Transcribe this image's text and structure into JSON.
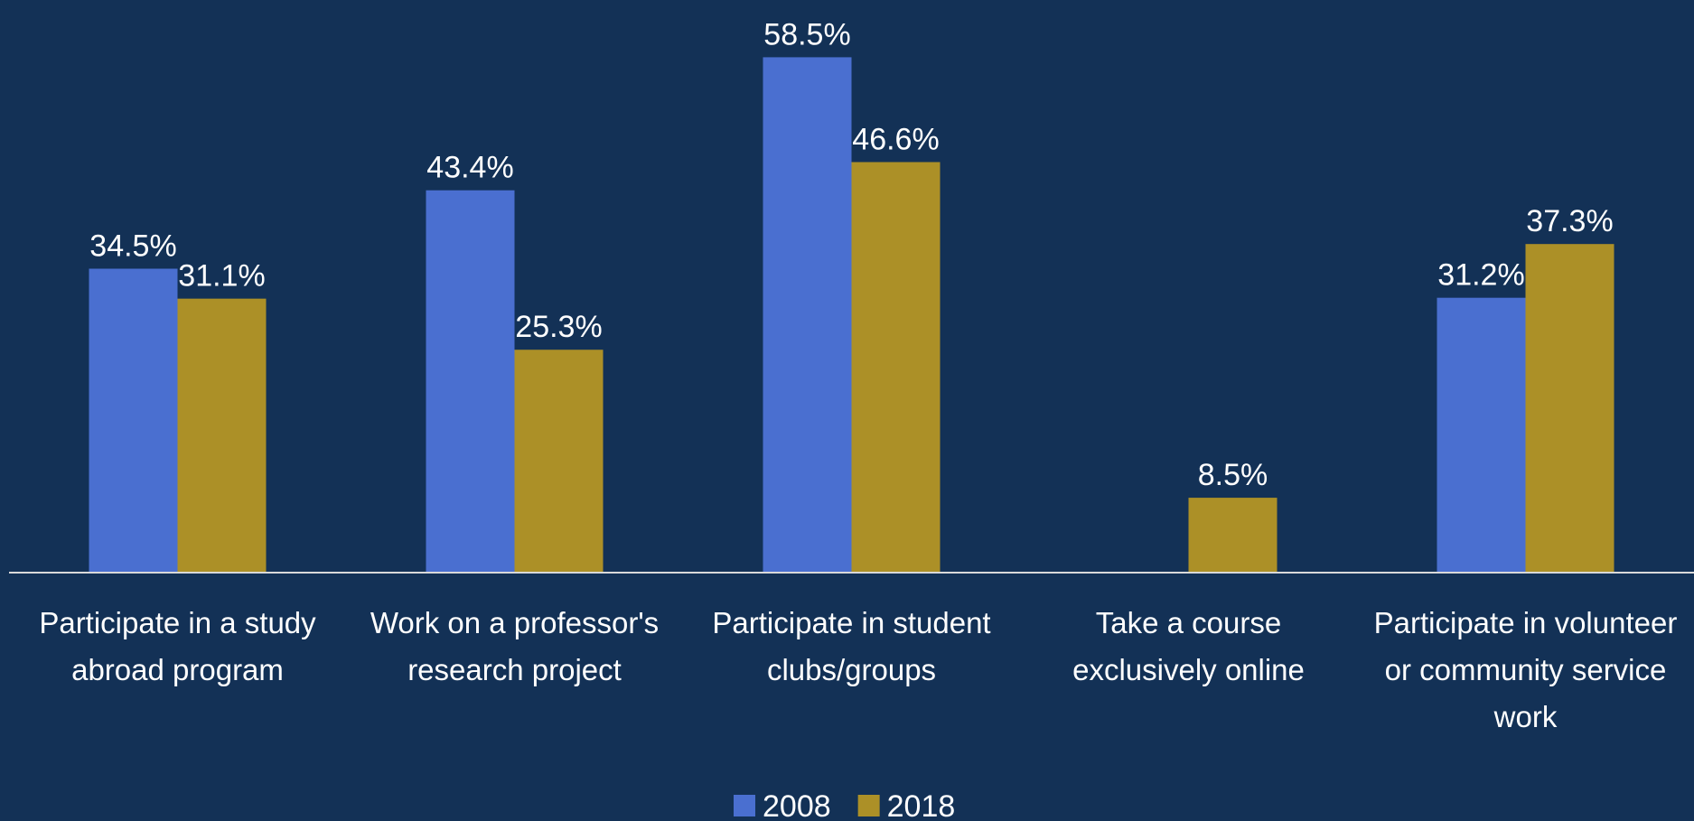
{
  "chart_data": {
    "type": "bar",
    "categories": [
      "Participate in a study abroad program",
      "Work on a professor's research project",
      "Participate in student clubs/groups",
      "Take a course exclusively online",
      "Participate in volunteer or community service work"
    ],
    "series": [
      {
        "name": "2008",
        "color": "#4a6fd0",
        "values": [
          34.5,
          43.4,
          58.5,
          null,
          31.2
        ],
        "value_labels": [
          "34.5%",
          "43.4%",
          "58.5%",
          null,
          "31.2%"
        ]
      },
      {
        "name": "2018",
        "color": "#ac9027",
        "values": [
          31.1,
          25.3,
          46.6,
          8.5,
          37.3
        ],
        "value_labels": [
          "31.1%",
          "25.3%",
          "46.6%",
          "8.5%",
          "37.3%"
        ]
      }
    ],
    "ylim": [
      0,
      65
    ],
    "legend": "bottom"
  }
}
